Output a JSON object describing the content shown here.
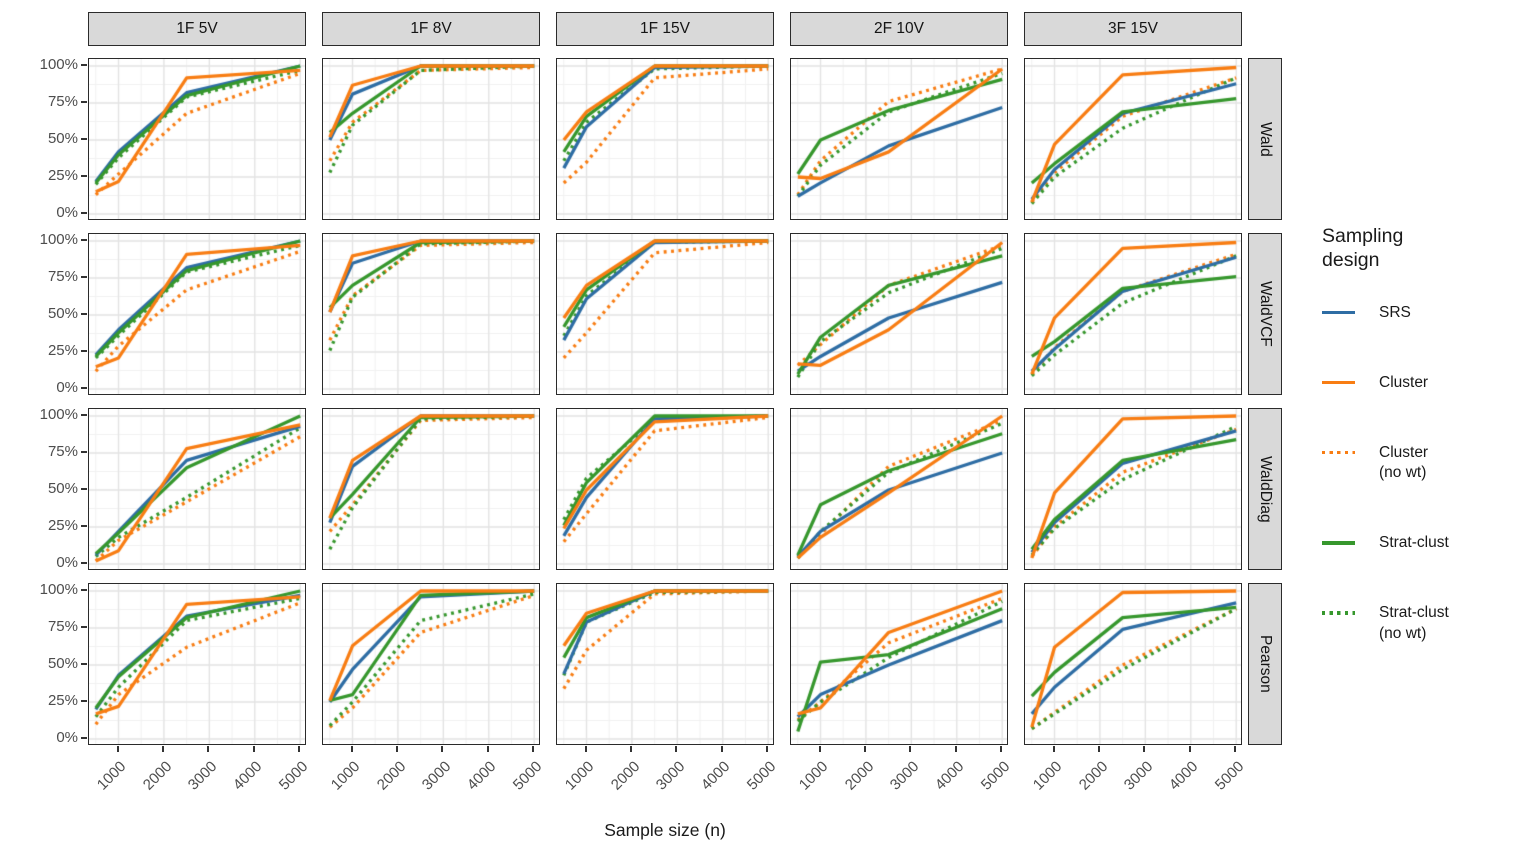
{
  "theme": {
    "background": "#ffffff",
    "strip_fill": "#d9d9d9",
    "strip_border": "#2b2b2b",
    "panel_border": "#2b2b2b",
    "grid_major": "#e3e3e3",
    "grid_minor": "#f1f1f1",
    "axis_text": "#4d4d4d",
    "tick_mark": "#333333"
  },
  "legend": {
    "title": "Sampling design"
  },
  "chart_data": {
    "type": "line",
    "xlabel": "Sample size (n)",
    "x_points": [
      500,
      1000,
      2500,
      5000
    ],
    "x_ticks": [
      1000,
      2000,
      3000,
      4000,
      5000
    ],
    "x_minor": [
      500,
      1500,
      2500,
      3500,
      4500
    ],
    "xlim": [
      350,
      5150
    ],
    "ylim": [
      0,
      100
    ],
    "y_ticks": [
      100,
      75,
      50,
      25,
      0
    ],
    "y_tick_labels": [
      "100%",
      "75%",
      "50%",
      "25%",
      "0%"
    ],
    "y_minor": [
      87.5,
      62.5,
      37.5,
      12.5
    ],
    "col_facets": [
      "1F 5V",
      "1F 8V",
      "1F 15V",
      "2F 10V",
      "3F 15V"
    ],
    "row_facets": [
      "Wald",
      "WaldVCF",
      "WaldDiag",
      "Pearson"
    ],
    "series": [
      {
        "key": "srs",
        "label": "SRS",
        "color": "#2e6da4",
        "dash": "solid"
      },
      {
        "key": "cluster",
        "label": "Cluster",
        "color": "#f87d13",
        "dash": "solid"
      },
      {
        "key": "cluster_nw",
        "label": "Cluster\n(no wt)",
        "color": "#f87d13",
        "dash": "dotted"
      },
      {
        "key": "strat",
        "label": "Strat-clust",
        "color": "#36972d",
        "dash": "solid"
      },
      {
        "key": "strat_nw",
        "label": "Strat-clust\n(no wt)",
        "color": "#36972d",
        "dash": "dotted"
      }
    ],
    "draw_order": [
      "cluster_nw",
      "strat_nw",
      "srs",
      "strat",
      "cluster"
    ],
    "panels": [
      {
        "row": "Wald",
        "col": "1F 5V",
        "values": {
          "srs": [
            22,
            42,
            82,
            100
          ],
          "cluster": [
            15,
            22,
            92,
            97
          ],
          "cluster_nw": [
            13,
            27,
            68,
            95
          ],
          "strat": [
            21,
            40,
            80,
            100
          ],
          "strat_nw": [
            20,
            38,
            79,
            97
          ]
        }
      },
      {
        "row": "Wald",
        "col": "1F 8V",
        "values": {
          "srs": [
            50,
            81,
            100,
            100
          ],
          "cluster": [
            52,
            87,
            100,
            100
          ],
          "cluster_nw": [
            36,
            62,
            97,
            99
          ],
          "strat": [
            55,
            68,
            100,
            100
          ],
          "strat_nw": [
            28,
            60,
            97,
            100
          ]
        }
      },
      {
        "row": "Wald",
        "col": "1F 15V",
        "values": {
          "srs": [
            31,
            59,
            99,
            100
          ],
          "cluster": [
            50,
            69,
            100,
            100
          ],
          "cluster_nw": [
            21,
            35,
            92,
            98
          ],
          "strat": [
            42,
            66,
            100,
            100
          ],
          "strat_nw": [
            36,
            62,
            98,
            100
          ]
        }
      },
      {
        "row": "Wald",
        "col": "2F 10V",
        "values": {
          "srs": [
            12,
            21,
            46,
            72
          ],
          "cluster": [
            25,
            24,
            42,
            98
          ],
          "cluster_nw": [
            13,
            36,
            76,
            98
          ],
          "strat": [
            27,
            50,
            70,
            91
          ],
          "strat_nw": [
            12,
            33,
            69,
            95
          ]
        }
      },
      {
        "row": "Wald",
        "col": "3F 15V",
        "values": {
          "srs": [
            10,
            30,
            68,
            88
          ],
          "cluster": [
            8,
            47,
            94,
            99
          ],
          "cluster_nw": [
            8,
            28,
            66,
            92
          ],
          "strat": [
            21,
            34,
            69,
            78
          ],
          "strat_nw": [
            7,
            25,
            58,
            92
          ]
        }
      },
      {
        "row": "WaldVCF",
        "col": "1F 5V",
        "values": {
          "srs": [
            23,
            40,
            82,
            100
          ],
          "cluster": [
            15,
            21,
            91,
            97
          ],
          "cluster_nw": [
            12,
            29,
            67,
            93
          ],
          "strat": [
            22,
            38,
            80,
            100
          ],
          "strat_nw": [
            21,
            36,
            79,
            97
          ]
        }
      },
      {
        "row": "WaldVCF",
        "col": "1F 8V",
        "values": {
          "srs": [
            52,
            85,
            100,
            100
          ],
          "cluster": [
            52,
            90,
            100,
            100
          ],
          "cluster_nw": [
            33,
            63,
            97,
            99
          ],
          "strat": [
            55,
            70,
            99,
            100
          ],
          "strat_nw": [
            26,
            62,
            98,
            100
          ]
        }
      },
      {
        "row": "WaldVCF",
        "col": "1F 15V",
        "values": {
          "srs": [
            33,
            61,
            99,
            100
          ],
          "cluster": [
            48,
            70,
            100,
            100
          ],
          "cluster_nw": [
            21,
            38,
            92,
            99
          ],
          "strat": [
            42,
            67,
            100,
            100
          ],
          "strat_nw": [
            36,
            63,
            99,
            100
          ]
        }
      },
      {
        "row": "WaldVCF",
        "col": "2F 10V",
        "values": {
          "srs": [
            12,
            22,
            48,
            72
          ],
          "cluster": [
            17,
            16,
            40,
            99
          ],
          "cluster_nw": [
            16,
            30,
            70,
            97
          ],
          "strat": [
            10,
            35,
            70,
            90
          ],
          "strat_nw": [
            8,
            32,
            65,
            95
          ]
        }
      },
      {
        "row": "WaldVCF",
        "col": "3F 15V",
        "values": {
          "srs": [
            12,
            27,
            66,
            89
          ],
          "cluster": [
            10,
            48,
            95,
            99
          ],
          "cluster_nw": [
            10,
            28,
            66,
            91
          ],
          "strat": [
            22,
            32,
            68,
            76
          ],
          "strat_nw": [
            9,
            23,
            58,
            90
          ]
        }
      },
      {
        "row": "WaldDiag",
        "col": "1F 5V",
        "values": {
          "srs": [
            6,
            22,
            70,
            93
          ],
          "cluster": [
            2,
            9,
            78,
            94
          ],
          "cluster_nw": [
            2,
            16,
            42,
            86
          ],
          "strat": [
            7,
            21,
            65,
            100
          ],
          "strat_nw": [
            5,
            18,
            45,
            92
          ]
        }
      },
      {
        "row": "WaldDiag",
        "col": "1F 8V",
        "values": {
          "srs": [
            28,
            66,
            100,
            100
          ],
          "cluster": [
            31,
            70,
            100,
            100
          ],
          "cluster_nw": [
            22,
            40,
            97,
            99
          ],
          "strat": [
            31,
            47,
            99,
            100
          ],
          "strat_nw": [
            10,
            38,
            98,
            100
          ]
        }
      },
      {
        "row": "WaldDiag",
        "col": "1F 15V",
        "values": {
          "srs": [
            19,
            45,
            98,
            100
          ],
          "cluster": [
            24,
            50,
            96,
            100
          ],
          "cluster_nw": [
            15,
            34,
            90,
            99
          ],
          "strat": [
            26,
            55,
            100,
            100
          ],
          "strat_nw": [
            30,
            58,
            97,
            100
          ]
        }
      },
      {
        "row": "WaldDiag",
        "col": "2F 10V",
        "values": {
          "srs": [
            5,
            22,
            50,
            75
          ],
          "cluster": [
            4,
            18,
            48,
            100
          ],
          "cluster_nw": [
            4,
            20,
            66,
            97
          ],
          "strat": [
            6,
            40,
            63,
            88
          ],
          "strat_nw": [
            4,
            22,
            62,
            95
          ]
        }
      },
      {
        "row": "WaldDiag",
        "col": "3F 15V",
        "values": {
          "srs": [
            8,
            28,
            68,
            90
          ],
          "cluster": [
            4,
            48,
            98,
            100
          ],
          "cluster_nw": [
            5,
            25,
            62,
            91
          ],
          "strat": [
            10,
            30,
            70,
            84
          ],
          "strat_nw": [
            6,
            24,
            57,
            93
          ]
        }
      },
      {
        "row": "Pearson",
        "col": "1F 5V",
        "values": {
          "srs": [
            20,
            43,
            83,
            97
          ],
          "cluster": [
            17,
            22,
            91,
            96
          ],
          "cluster_nw": [
            10,
            30,
            62,
            92
          ],
          "strat": [
            21,
            42,
            82,
            100
          ],
          "strat_nw": [
            15,
            35,
            80,
            95
          ]
        }
      },
      {
        "row": "Pearson",
        "col": "1F 8V",
        "values": {
          "srs": [
            25,
            47,
            96,
            100
          ],
          "cluster": [
            26,
            63,
            100,
            100
          ],
          "cluster_nw": [
            8,
            21,
            72,
            97
          ],
          "strat": [
            26,
            30,
            97,
            100
          ],
          "strat_nw": [
            9,
            25,
            80,
            98
          ]
        }
      },
      {
        "row": "Pearson",
        "col": "1F 15V",
        "values": {
          "srs": [
            44,
            79,
            100,
            100
          ],
          "cluster": [
            63,
            85,
            100,
            100
          ],
          "cluster_nw": [
            34,
            60,
            98,
            100
          ],
          "strat": [
            55,
            82,
            100,
            100
          ],
          "strat_nw": [
            43,
            79,
            99,
            100
          ]
        }
      },
      {
        "row": "Pearson",
        "col": "2F 10V",
        "values": {
          "srs": [
            15,
            30,
            50,
            80
          ],
          "cluster": [
            17,
            21,
            72,
            100
          ],
          "cluster_nw": [
            13,
            25,
            65,
            95
          ],
          "strat": [
            5,
            52,
            57,
            88
          ],
          "strat_nw": [
            12,
            25,
            55,
            93
          ]
        }
      },
      {
        "row": "Pearson",
        "col": "3F 15V",
        "values": {
          "srs": [
            17,
            35,
            74,
            92
          ],
          "cluster": [
            8,
            62,
            99,
            100
          ],
          "cluster_nw": [
            7,
            18,
            50,
            88
          ],
          "strat": [
            29,
            45,
            82,
            89
          ],
          "strat_nw": [
            7,
            17,
            47,
            88
          ]
        }
      }
    ]
  }
}
